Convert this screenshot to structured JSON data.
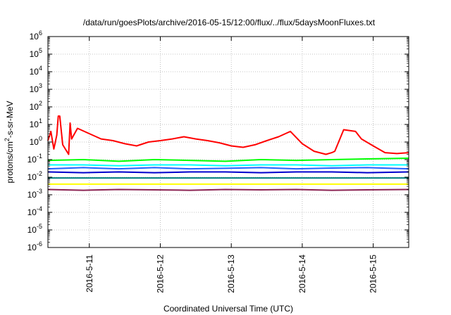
{
  "chart_data": {
    "type": "line",
    "title": "/data/run/goesPlots/archive/2016-05-15/12:00/flux/../flux/5daysMoonFluxes.txt",
    "xlabel": "Coordinated Universal Time (UTC)",
    "ylabel": {
      "pre": "protons/cm",
      "sup": "2",
      "post": "-s-sr-MeV"
    },
    "y_scale": "log",
    "ylim": [
      1e-06,
      1000000
    ],
    "y_tick_exponents": [
      -6,
      -5,
      -4,
      -3,
      -2,
      -1,
      0,
      1,
      2,
      3,
      4,
      5,
      6
    ],
    "y_tick_base": "10",
    "x_range": [
      "2016-05-10T10:00",
      "2016-05-15T12:00"
    ],
    "x_ticks": [
      {
        "at": "2016-05-11T00:00",
        "label": "2016-5-11"
      },
      {
        "at": "2016-05-12T00:00",
        "label": "2016-5-12"
      },
      {
        "at": "2016-05-13T00:00",
        "label": "2016-5-13"
      },
      {
        "at": "2016-05-14T00:00",
        "label": "2016-5-14"
      },
      {
        "at": "2016-05-15T00:00",
        "label": "2016-5-15"
      }
    ],
    "grid": true,
    "legend": "none",
    "series": [
      {
        "color": "#ff0000",
        "x": [
          "2016-05-10T10:00",
          "2016-05-10T11:00",
          "2016-05-10T12:00",
          "2016-05-10T13:00",
          "2016-05-10T13:30",
          "2016-05-10T14:00",
          "2016-05-10T15:00",
          "2016-05-10T17:00",
          "2016-05-10T17:30",
          "2016-05-10T18:00",
          "2016-05-10T20:00",
          "2016-05-11T00:00",
          "2016-05-11T04:00",
          "2016-05-11T08:00",
          "2016-05-11T12:00",
          "2016-05-11T16:00",
          "2016-05-11T20:00",
          "2016-05-12T00:00",
          "2016-05-12T04:00",
          "2016-05-12T08:00",
          "2016-05-12T12:00",
          "2016-05-12T16:00",
          "2016-05-12T20:00",
          "2016-05-13T00:00",
          "2016-05-13T04:00",
          "2016-05-13T08:00",
          "2016-05-13T12:00",
          "2016-05-13T16:00",
          "2016-05-13T20:00",
          "2016-05-14T00:00",
          "2016-05-14T04:00",
          "2016-05-14T08:00",
          "2016-05-14T10:00",
          "2016-05-14T11:00",
          "2016-05-14T14:00",
          "2016-05-14T18:00",
          "2016-05-14T20:00",
          "2016-05-15T00:00",
          "2016-05-15T04:00",
          "2016-05-15T08:00",
          "2016-05-15T12:00"
        ],
        "y": [
          1.2,
          4,
          0.4,
          2.5,
          30,
          30,
          0.7,
          0.2,
          12,
          1.5,
          6,
          3,
          1.5,
          1.2,
          0.8,
          0.6,
          1,
          1.2,
          1.5,
          2,
          1.5,
          1.2,
          0.9,
          0.6,
          0.5,
          0.7,
          1.2,
          2,
          4,
          0.8,
          0.3,
          0.2,
          0.25,
          0.3,
          5,
          4,
          1.5,
          0.6,
          0.25,
          0.22,
          0.25
        ]
      },
      {
        "color": "#00ff00",
        "x": [
          "2016-05-10T10:00",
          "2016-05-10T22:00",
          "2016-05-11T10:00",
          "2016-05-11T22:00",
          "2016-05-12T10:00",
          "2016-05-12T22:00",
          "2016-05-13T10:00",
          "2016-05-13T22:00",
          "2016-05-14T10:00",
          "2016-05-14T22:00",
          "2016-05-15T12:00"
        ],
        "y": [
          0.09,
          0.1,
          0.08,
          0.1,
          0.09,
          0.08,
          0.1,
          0.09,
          0.1,
          0.11,
          0.12
        ]
      },
      {
        "color": "#00ffff",
        "x": [
          "2016-05-10T10:00",
          "2016-05-10T22:00",
          "2016-05-11T10:00",
          "2016-05-11T22:00",
          "2016-05-12T10:00",
          "2016-05-12T22:00",
          "2016-05-13T10:00",
          "2016-05-13T22:00",
          "2016-05-14T10:00",
          "2016-05-14T22:00",
          "2016-05-15T12:00"
        ],
        "y": [
          0.05,
          0.05,
          0.045,
          0.05,
          0.05,
          0.045,
          0.05,
          0.05,
          0.045,
          0.05,
          0.05
        ]
      },
      {
        "color": "#2060ff",
        "x": [
          "2016-05-10T10:00",
          "2016-05-10T22:00",
          "2016-05-11T10:00",
          "2016-05-11T22:00",
          "2016-05-12T10:00",
          "2016-05-12T22:00",
          "2016-05-13T10:00",
          "2016-05-13T22:00",
          "2016-05-14T10:00",
          "2016-05-14T22:00",
          "2016-05-15T12:00"
        ],
        "y": [
          0.03,
          0.035,
          0.03,
          0.035,
          0.03,
          0.032,
          0.035,
          0.03,
          0.033,
          0.035,
          0.03
        ]
      },
      {
        "color": "#0000cc",
        "x": [
          "2016-05-10T10:00",
          "2016-05-10T22:00",
          "2016-05-11T10:00",
          "2016-05-11T22:00",
          "2016-05-12T10:00",
          "2016-05-12T22:00",
          "2016-05-13T10:00",
          "2016-05-13T22:00",
          "2016-05-14T10:00",
          "2016-05-14T22:00",
          "2016-05-15T12:00"
        ],
        "y": [
          0.02,
          0.018,
          0.02,
          0.018,
          0.02,
          0.02,
          0.018,
          0.02,
          0.02,
          0.018,
          0.02
        ]
      },
      {
        "color": "#008080",
        "x": [
          "2016-05-10T10:00",
          "2016-05-10T22:00",
          "2016-05-11T10:00",
          "2016-05-11T22:00",
          "2016-05-12T10:00",
          "2016-05-12T22:00",
          "2016-05-13T10:00",
          "2016-05-13T22:00",
          "2016-05-14T10:00",
          "2016-05-14T22:00",
          "2016-05-15T12:00"
        ],
        "y": [
          0.009,
          0.009,
          0.009,
          0.009,
          0.009,
          0.009,
          0.009,
          0.009,
          0.009,
          0.009,
          0.009
        ]
      },
      {
        "color": "#ffff00",
        "x": [
          "2016-05-10T10:00",
          "2016-05-11T10:00",
          "2016-05-12T10:00",
          "2016-05-13T10:00",
          "2016-05-14T10:00",
          "2016-05-15T12:00"
        ],
        "y": [
          0.004,
          0.004,
          0.004,
          0.004,
          0.004,
          0.004
        ]
      },
      {
        "color": "#8b2252",
        "x": [
          "2016-05-10T10:00",
          "2016-05-10T22:00",
          "2016-05-11T10:00",
          "2016-05-11T22:00",
          "2016-05-12T10:00",
          "2016-05-12T22:00",
          "2016-05-13T10:00",
          "2016-05-13T22:00",
          "2016-05-14T10:00",
          "2016-05-14T22:00",
          "2016-05-15T12:00"
        ],
        "y": [
          0.002,
          0.0018,
          0.002,
          0.0019,
          0.0018,
          0.002,
          0.0019,
          0.002,
          0.0018,
          0.0019,
          0.002
        ]
      }
    ]
  }
}
